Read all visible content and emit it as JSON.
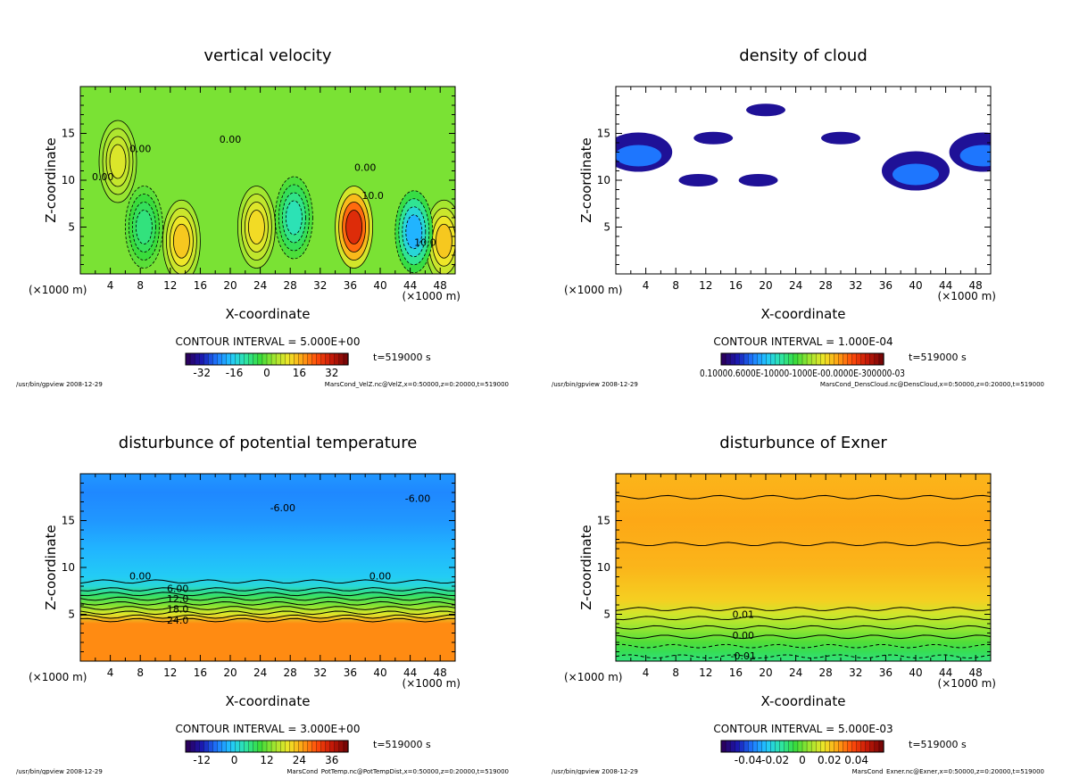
{
  "colors": {
    "frame": "#000000",
    "background": "#ffffff",
    "colormap_stops": [
      "#2a0060",
      "#1a1ab4",
      "#1e78ff",
      "#22c8ff",
      "#2ee6a8",
      "#38dc3c",
      "#a0e630",
      "#f0e628",
      "#ffa014",
      "#ff4a0a",
      "#c81a08",
      "#7a0606"
    ]
  },
  "chart_data": [
    {
      "type": "heatmap",
      "title": "vertical velocity",
      "xlabel": "X-coordinate",
      "ylabel": "Z-coordinate",
      "x_unit_left": "(×1000 m)",
      "x_unit_right": "(×1000 m)",
      "xlim": [
        0,
        50
      ],
      "ylim": [
        0,
        20
      ],
      "xticks": [
        4,
        8,
        12,
        16,
        20,
        24,
        28,
        32,
        36,
        40,
        44,
        48
      ],
      "yticks": [
        5,
        10,
        15
      ],
      "contour_interval": "CONTOUR INTERVAL = 5.000E+00",
      "time": "t=519000 s",
      "colorbar_range": [
        -40,
        40
      ],
      "colorbar_ticks": [
        "-32",
        "-16",
        "0",
        "16",
        "32"
      ],
      "contour_labels": [
        "0.00",
        "0.00",
        "0.00",
        "0.00",
        "10.0",
        "10.0"
      ],
      "field_features": [
        {
          "x": 36.5,
          "z": 5,
          "value": 30
        },
        {
          "x": 13.5,
          "z": 3.5,
          "value": 14
        },
        {
          "x": 23.5,
          "z": 5,
          "value": 12
        },
        {
          "x": 48.5,
          "z": 3.5,
          "value": 14
        },
        {
          "x": 44.5,
          "z": 4.5,
          "value": -20
        },
        {
          "x": 28.5,
          "z": 6,
          "value": -12
        },
        {
          "x": 8.5,
          "z": 5,
          "value": -8
        },
        {
          "x": 5,
          "z": 12,
          "value": 9
        }
      ],
      "footer_left": "/usr/bin/gpview  2008-12-29",
      "footer_right": "MarsCond_VelZ.nc@VelZ,x=0:50000,z=0:20000,t=519000"
    },
    {
      "type": "heatmap",
      "title": "density of cloud",
      "xlabel": "X-coordinate",
      "ylabel": "Z-coordinate",
      "x_unit_left": "(×1000 m)",
      "x_unit_right": "(×1000 m)",
      "xlim": [
        0,
        50
      ],
      "ylim": [
        0,
        20
      ],
      "xticks": [
        4,
        8,
        12,
        16,
        20,
        24,
        28,
        32,
        36,
        40,
        44,
        48
      ],
      "yticks": [
        5,
        10,
        15
      ],
      "contour_interval": "CONTOUR INTERVAL = 1.000E-04",
      "time": "t=519000 s",
      "colorbar_range": [
        0,
        0.0005
      ],
      "colorbar_ticks": [
        "0.10000.6000E-10000-1000E-00.0000E-300000-03"
      ],
      "field_features": [
        {
          "x": 3,
          "z": 13,
          "value": 0.00035
        },
        {
          "x": 40,
          "z": 11,
          "value": 0.0003
        },
        {
          "x": 49,
          "z": 13,
          "value": 0.00035
        },
        {
          "x": 20,
          "z": 17.5,
          "value": 0.0001
        },
        {
          "x": 13,
          "z": 14.5,
          "value": 0.0001
        },
        {
          "x": 30,
          "z": 14.5,
          "value": 0.0001
        },
        {
          "x": 11,
          "z": 10,
          "value": 0.0001
        },
        {
          "x": 19,
          "z": 10,
          "value": 0.0001
        }
      ],
      "footer_left": "/usr/bin/gpview  2008-12-29",
      "footer_right": "MarsCond_DensCloud.nc@DensCloud,x=0:50000,z=0:20000,t=519000"
    },
    {
      "type": "heatmap",
      "title": "disturbunce of potential temperature",
      "xlabel": "X-coordinate",
      "ylabel": "Z-coordinate",
      "x_unit_left": "(×1000 m)",
      "x_unit_right": "(×1000 m)",
      "xlim": [
        0,
        50
      ],
      "ylim": [
        0,
        20
      ],
      "xticks": [
        4,
        8,
        12,
        16,
        20,
        24,
        28,
        32,
        36,
        40,
        44,
        48
      ],
      "yticks": [
        5,
        10,
        15
      ],
      "contour_interval": "CONTOUR INTERVAL = 3.000E+00",
      "time": "t=519000 s",
      "colorbar_range": [
        -18,
        42
      ],
      "colorbar_ticks": [
        "-12",
        "0",
        "12",
        "24",
        "36"
      ],
      "contour_labels": [
        "-6.00",
        "-6.00",
        "0.00",
        "0.00",
        "6.00",
        "12.0",
        "18.0",
        "24.0"
      ],
      "profile": [
        {
          "z": 0,
          "value": 27
        },
        {
          "z": 4,
          "value": 27
        },
        {
          "z": 5,
          "value": 19
        },
        {
          "z": 6,
          "value": 13
        },
        {
          "z": 7,
          "value": 7
        },
        {
          "z": 8,
          "value": 1
        },
        {
          "z": 9,
          "value": -1
        },
        {
          "z": 12,
          "value": -3
        },
        {
          "z": 15,
          "value": -5
        },
        {
          "z": 18,
          "value": -6
        },
        {
          "z": 20,
          "value": -5
        }
      ],
      "footer_left": "/usr/bin/gpview  2008-12-29",
      "footer_right": "MarsCond_PotTemp.nc@PotTempDist,x=0:50000,z=0:20000,t=519000"
    },
    {
      "type": "heatmap",
      "title": "disturbunce of Exner",
      "xlabel": "X-coordinate",
      "ylabel": "Z-coordinate",
      "x_unit_left": "(×1000 m)",
      "x_unit_right": "(×1000 m)",
      "xlim": [
        0,
        50
      ],
      "ylim": [
        0,
        20
      ],
      "xticks": [
        4,
        8,
        12,
        16,
        20,
        24,
        28,
        32,
        36,
        40,
        44,
        48
      ],
      "yticks": [
        5,
        10,
        15
      ],
      "contour_interval": "CONTOUR INTERVAL = 5.000E-03",
      "time": "t=519000 s",
      "colorbar_range": [
        -0.06,
        0.06
      ],
      "colorbar_ticks": [
        "-0.04",
        "-0.02",
        "0",
        "0.02",
        "0.04"
      ],
      "contour_labels": [
        "0.01",
        "0.00",
        "-0.01"
      ],
      "profile": [
        {
          "z": 0,
          "value": -0.012
        },
        {
          "z": 1,
          "value": -0.008
        },
        {
          "z": 2,
          "value": -0.003
        },
        {
          "z": 3,
          "value": 0.002
        },
        {
          "z": 4,
          "value": 0.007
        },
        {
          "z": 5,
          "value": 0.012
        },
        {
          "z": 6.5,
          "value": 0.02
        },
        {
          "z": 10,
          "value": 0.024
        },
        {
          "z": 15,
          "value": 0.026
        },
        {
          "z": 20,
          "value": 0.024
        }
      ],
      "footer_left": "/usr/bin/gpview  2008-12-29",
      "footer_right": "MarsCond_Exner.nc@Exner,x=0:50000,z=0:20000,t=519000"
    }
  ]
}
